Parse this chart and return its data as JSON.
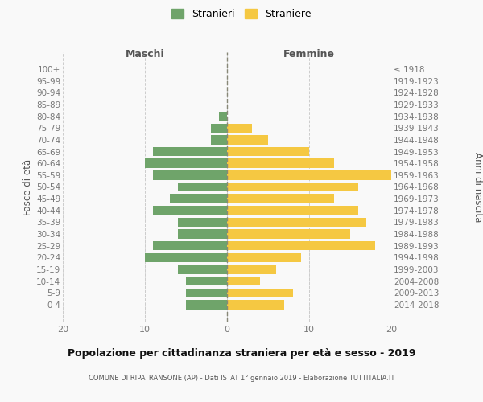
{
  "age_groups": [
    "0-4",
    "5-9",
    "10-14",
    "15-19",
    "20-24",
    "25-29",
    "30-34",
    "35-39",
    "40-44",
    "45-49",
    "50-54",
    "55-59",
    "60-64",
    "65-69",
    "70-74",
    "75-79",
    "80-84",
    "85-89",
    "90-94",
    "95-99",
    "100+"
  ],
  "birth_years": [
    "2014-2018",
    "2009-2013",
    "2004-2008",
    "1999-2003",
    "1994-1998",
    "1989-1993",
    "1984-1988",
    "1979-1983",
    "1974-1978",
    "1969-1973",
    "1964-1968",
    "1959-1963",
    "1954-1958",
    "1949-1953",
    "1944-1948",
    "1939-1943",
    "1934-1938",
    "1929-1933",
    "1924-1928",
    "1919-1923",
    "≤ 1918"
  ],
  "maschi": [
    5,
    5,
    5,
    6,
    10,
    9,
    6,
    6,
    9,
    7,
    6,
    9,
    10,
    9,
    2,
    2,
    1,
    0,
    0,
    0,
    0
  ],
  "femmine": [
    7,
    8,
    4,
    6,
    9,
    18,
    15,
    17,
    16,
    13,
    16,
    20,
    13,
    10,
    5,
    3,
    0,
    0,
    0,
    0,
    0
  ],
  "maschi_color": "#6fa46a",
  "femmine_color": "#f5c842",
  "background_color": "#f9f9f9",
  "grid_color": "#cccccc",
  "title": "Popolazione per cittadinanza straniera per età e sesso - 2019",
  "subtitle": "COMUNE DI RIPATRANSONE (AP) - Dati ISTAT 1° gennaio 2019 - Elaborazione TUTTITALIA.IT",
  "ylabel_left": "Fasce di età",
  "ylabel_right": "Anni di nascita",
  "xlabel_maschi": "Maschi",
  "xlabel_femmine": "Femmine",
  "legend_maschi": "Stranieri",
  "legend_femmine": "Straniere",
  "xlim": 20
}
